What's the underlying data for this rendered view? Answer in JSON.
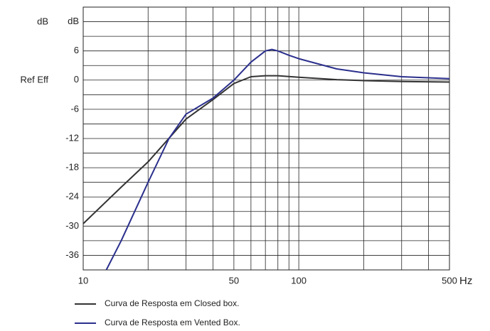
{
  "chart_data": {
    "type": "line",
    "ylabel": "dB",
    "annotations": [
      "Ref Eff"
    ],
    "xlabel": "Hz",
    "xscale": "log",
    "xlim": [
      10,
      500
    ],
    "xticks": [
      10,
      50,
      100,
      500
    ],
    "xgrid": [
      20,
      30,
      40,
      60,
      70,
      80,
      90,
      200,
      300,
      400
    ],
    "ylim": [
      -39,
      15
    ],
    "yticks": [
      {
        "value": 12,
        "label": "dB"
      },
      6,
      0,
      -6,
      -12,
      -18,
      -24,
      -30,
      -36
    ],
    "ygrid": [
      9,
      3,
      -3,
      -9,
      -15,
      -21,
      -27,
      -33
    ],
    "grid": true,
    "legend": "bottom-left",
    "series": [
      {
        "name": "Curva de Resposta em Closed box.",
        "color": "#333333",
        "x": [
          10,
          15,
          20,
          30,
          40,
          50,
          60,
          70,
          80,
          100,
          150,
          200,
          300,
          500
        ],
        "values": [
          -29.5,
          -22,
          -16.8,
          -8,
          -4,
          -0.7,
          0.7,
          0.9,
          0.9,
          0.6,
          0.1,
          -0.1,
          -0.3,
          -0.4
        ]
      },
      {
        "name": "Curva de Resposta em Vented Box.",
        "color": "#2b2f8c",
        "x": [
          12.8,
          15,
          20,
          25,
          30,
          40,
          50,
          60,
          70,
          75,
          80,
          90,
          100,
          150,
          200,
          300,
          500
        ],
        "values": [
          -39,
          -33,
          -21,
          -12,
          -7,
          -3.7,
          0,
          3.7,
          6,
          6.3,
          6,
          5.1,
          4.4,
          2.3,
          1.5,
          0.7,
          0.3
        ]
      }
    ]
  }
}
